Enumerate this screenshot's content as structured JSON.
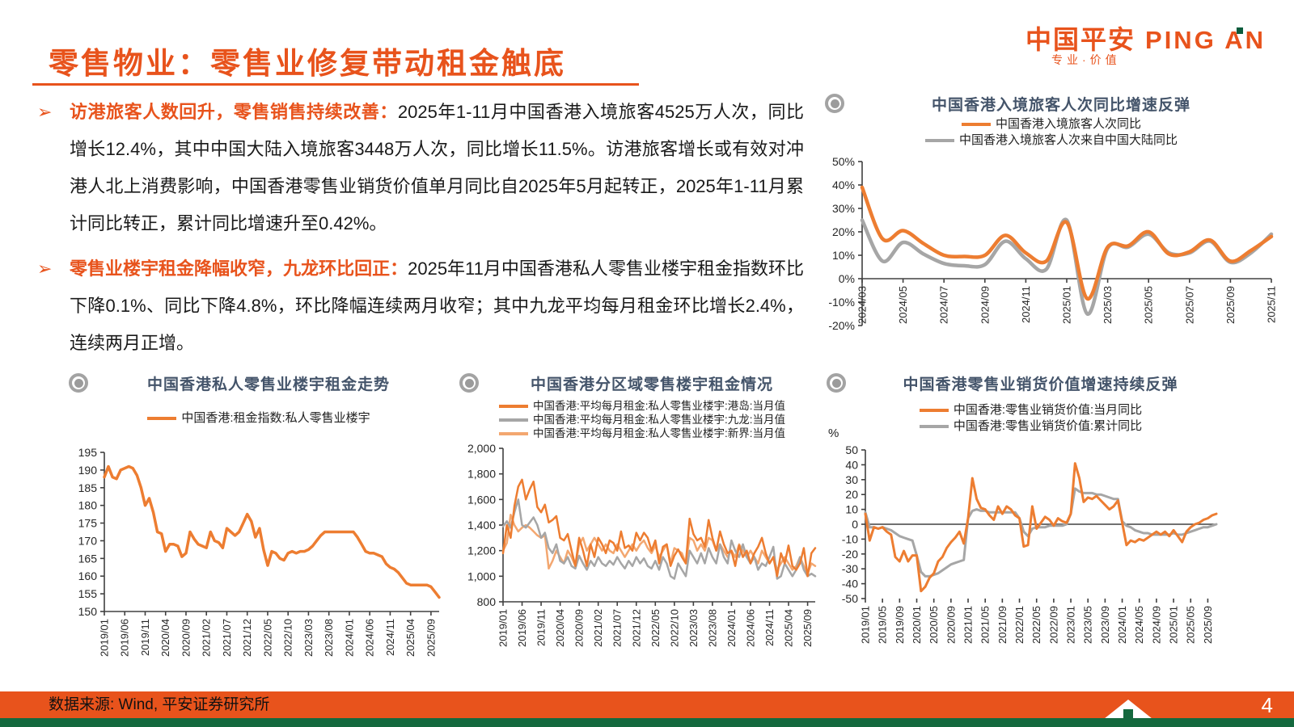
{
  "header": {
    "title": "零售物业：零售业修复带动租金触底",
    "logo": {
      "cn": "中国平安",
      "en": "PING AN",
      "tagline": "专业·价值"
    }
  },
  "bullets": [
    {
      "arrow": "➢",
      "lead": "访港旅客人数回升，零售销售持续改善：",
      "body": "2025年1-11月中国香港入境旅客4525万人次，同比增长12.4%，其中中国大陆入境旅客3448万人次，同比增长11.5%。访港旅客增长或有效对冲港人北上消费影响，中国香港零售业销货价值单月同比自2025年5月起转正，2025年1-11月累计同比转正，累计同比增速升至0.42%。"
    },
    {
      "arrow": "➢",
      "lead": "零售业楼宇租金降幅收窄，九龙环比回正：",
      "body": "2025年11月中国香港私人零售业楼宇租金指数环比下降0.1%、同比下降4.8%，环比降幅连续两月收窄；其中九龙平均每月租金环比增长2.4%，连续两月正增。"
    }
  ],
  "footer": {
    "source": "数据来源: Wind, 平安证券研究所",
    "page": "4"
  },
  "colors": {
    "accent_orange": "#E8531C",
    "series_orange": "#ED7D31",
    "series_gray": "#A6A6A6",
    "series_light_orange": "#F3A770",
    "chart_title_blue": "#44546A",
    "footer_green": "#14693E"
  },
  "chart_data": [
    {
      "type": "line",
      "title": "中国香港入境旅客人次同比增速反弹",
      "x_tick_labels": [
        "2024/03",
        "2024/05",
        "2024/07",
        "2024/09",
        "2024/11",
        "2025/01",
        "2025/03",
        "2025/05",
        "2025/07",
        "2025/09",
        "2025/11"
      ],
      "ylim": [
        -20,
        50
      ],
      "ytick_step": 10,
      "ytick_format": "percent",
      "series": [
        {
          "name": "中国香港入境旅客人次同比",
          "color": "#ED7D31",
          "values": [
            39,
            17,
            20.5,
            15,
            10,
            9.5,
            10,
            18.5,
            11,
            7.5,
            24,
            -8.5,
            13.5,
            14,
            20,
            10.5,
            11.5,
            16.5,
            7.5,
            12,
            18
          ]
        },
        {
          "name": "中国香港入境旅客人次来自中国大陆同比",
          "color": "#A6A6A6",
          "values": [
            25,
            7.5,
            15.5,
            10.5,
            6.5,
            5.5,
            6,
            16,
            8.5,
            4,
            25,
            -15,
            13,
            13.5,
            19,
            11,
            11,
            16,
            7,
            11,
            19
          ]
        }
      ]
    },
    {
      "type": "line",
      "title": "中国香港私人零售业楼宇租金走势",
      "x_tick_labels": [
        "2019/01",
        "2019/06",
        "2019/11",
        "2020/04",
        "2020/09",
        "2021/02",
        "2021/07",
        "2021/12",
        "2022/05",
        "2022/10",
        "2023/03",
        "2023/08",
        "2024/01",
        "2024/06",
        "2024/11",
        "2025/04",
        "2025/09"
      ],
      "ylim": [
        150,
        195
      ],
      "ytick_step": 5,
      "ytick_format": "plain",
      "series": [
        {
          "name": "中国香港:租金指数:私人零售业楼宇",
          "color": "#ED7D31",
          "values": [
            188,
            191,
            188,
            187.5,
            190,
            190.5,
            191,
            190.5,
            188.5,
            185,
            180,
            182,
            178,
            172.5,
            172,
            167,
            169,
            169,
            168.5,
            165.5,
            166.5,
            172.5,
            170.5,
            169,
            168.5,
            168,
            172.5,
            170,
            169.5,
            168,
            173.5,
            172.5,
            171.5,
            172.5,
            175,
            177.5,
            175.5,
            171,
            173.5,
            167.5,
            163,
            167,
            166.5,
            165,
            164.5,
            166.5,
            167,
            166.5,
            167,
            167,
            167.5,
            168.5,
            170,
            171.5,
            172.5,
            172.5,
            172.5,
            172.5,
            172.5,
            172.5,
            172.5,
            172.5,
            171,
            169,
            167,
            166.5,
            166.5,
            166,
            165.5,
            163.5,
            162.5,
            162,
            161,
            159.5,
            158,
            157.5,
            157.5,
            157.5,
            157.5,
            157.5,
            157,
            155.5,
            154
          ]
        }
      ]
    },
    {
      "type": "line",
      "title": "中国香港分区域零售楼宇租金情况",
      "x_tick_labels": [
        "2019/01",
        "2019/06",
        "2019/11",
        "2020/04",
        "2020/09",
        "2021/02",
        "2021/07",
        "2021/12",
        "2022/05",
        "2022/10",
        "2023/03",
        "2023/08",
        "2024/01",
        "2024/06",
        "2024/11",
        "2025/04",
        "2025/09"
      ],
      "ylim": [
        800,
        2000
      ],
      "ytick_step": 200,
      "ytick_format": "comma",
      "series": [
        {
          "name": "中国香港:平均每月租金:私人零售业楼宇:港岛:当月值",
          "color": "#ED7D31",
          "values": [
            1180,
            1400,
            1300,
            1550,
            1700,
            1755,
            1600,
            1680,
            1740,
            1540,
            1500,
            1560,
            1420,
            1440,
            1470,
            1300,
            1280,
            1330,
            1200,
            1080,
            1300,
            1200,
            1080,
            1250,
            1150,
            1300,
            1250,
            1180,
            1280,
            1260,
            1200,
            1350,
            1220,
            1240,
            1200,
            1340,
            1280,
            1340,
            1300,
            1200,
            1280,
            1100,
            1230,
            1250,
            1080,
            1160,
            1210,
            1150,
            1100,
            1450,
            1330,
            1280,
            1300,
            1230,
            1440,
            1300,
            1200,
            1350,
            1250,
            1180,
            1200,
            1080,
            1240,
            1150,
            1200,
            1100,
            1180,
            1230,
            1300,
            1180,
            1100,
            1150,
            1000,
            1180,
            1100,
            1240,
            1080,
            1050,
            1100,
            1220,
            1000,
            1180,
            1220
          ]
        },
        {
          "name": "中国香港:平均每月租金:私人零售业楼宇:九龙:当月值",
          "color": "#A6A6A6",
          "values": [
            1390,
            1430,
            1380,
            1500,
            1600,
            1400,
            1380,
            1420,
            1460,
            1400,
            1300,
            1340,
            1220,
            1180,
            1250,
            1120,
            1100,
            1150,
            1080,
            1060,
            1160,
            1100,
            1050,
            1120,
            1080,
            1150,
            1100,
            1080,
            1120,
            1090,
            1150,
            1100,
            1060,
            1120,
            1080,
            1150,
            1100,
            1140,
            1080,
            1060,
            1120,
            1050,
            1150,
            1100,
            1000,
            980,
            1100,
            1050,
            1000,
            1200,
            1150,
            1100,
            1180,
            1100,
            1220,
            1150,
            1100,
            1250,
            1150,
            1100,
            1280,
            1200,
            1150,
            1250,
            1150,
            1100,
            1150,
            1050,
            1100,
            1080,
            1150,
            1230,
            980,
            1000,
            1100,
            1050,
            1000,
            1050,
            1150,
            1050,
            1000,
            1020,
            1000
          ]
        },
        {
          "name": "中国香港:平均每月租金:私人零售业楼宇:新界:当月值",
          "color": "#F3A770",
          "values": [
            1200,
            1260,
            1480,
            1400,
            1350,
            1380,
            1400,
            1380,
            1350,
            1320,
            1300,
            1320,
            1060,
            1120,
            1200,
            1150,
            1100,
            1200,
            1150,
            1080,
            1250,
            1300,
            1200,
            1250,
            1300,
            1250,
            1200,
            1250,
            1200,
            1180,
            1250,
            1200,
            1150,
            1200,
            1250,
            1200,
            1250,
            1280,
            1220,
            1180,
            1240,
            1150,
            1200,
            1250,
            1100,
            1220,
            1200,
            1180,
            1100,
            1300,
            1280,
            1200,
            1250,
            1200,
            1300,
            1280,
            1200,
            1250,
            1200,
            1150,
            1200,
            1150,
            1250,
            1200,
            1150,
            1200,
            1150,
            1100,
            1200,
            1150,
            1100,
            1150,
            1050,
            1100,
            1150,
            1100,
            1050,
            1080,
            1150,
            1080,
            1020,
            1100,
            1080
          ]
        }
      ]
    },
    {
      "type": "line",
      "title": "中国香港零售业销货价值增速持续反弹",
      "y_axis_unit": "%",
      "x_tick_labels": [
        "2019/01",
        "2019/05",
        "2019/09",
        "2020/01",
        "2020/05",
        "2020/09",
        "2021/01",
        "2021/05",
        "2021/09",
        "2022/01",
        "2022/05",
        "2022/09",
        "2023/01",
        "2023/05",
        "2023/09",
        "2024/01",
        "2024/05",
        "2024/09",
        "2025/01",
        "2025/05",
        "2025/09"
      ],
      "ylim": [
        -50,
        50
      ],
      "ytick_step": 10,
      "ytick_format": "plain",
      "series": [
        {
          "name": "中国香港:零售业销货价值:当月同比",
          "color": "#ED7D31",
          "values": [
            7,
            -11,
            -2,
            -3,
            -2,
            -5,
            -7,
            -22,
            -25,
            -18,
            -25,
            -21,
            -21,
            -45,
            -42,
            -36,
            -33,
            -25,
            -22,
            -16,
            -12,
            -9,
            -5,
            -13,
            4,
            31,
            17,
            11,
            10,
            6,
            3,
            12,
            7,
            12,
            10,
            6,
            4,
            -15,
            -14,
            12,
            -3,
            1,
            5,
            3,
            -1,
            4,
            2,
            1,
            7,
            41,
            31,
            15,
            18,
            17,
            19,
            16,
            13,
            10,
            12,
            16,
            1,
            -14,
            -11,
            -12,
            -10,
            -11,
            -9,
            -7,
            -5,
            -7,
            -5,
            -8,
            -4,
            -8,
            -12,
            -5,
            -2,
            0,
            1,
            3,
            4,
            6,
            7
          ]
        },
        {
          "name": "中国香港:零售业销货价值:累计同比",
          "color": "#A6A6A6",
          "values": [
            8,
            -2,
            -2,
            -3,
            -2,
            -3,
            -4,
            -6,
            -8,
            -9,
            -10,
            -11,
            -21,
            -32,
            -35,
            -35,
            -34,
            -33,
            -31,
            -29,
            -27,
            -26,
            -25,
            -24,
            4,
            9,
            10,
            9,
            9,
            8,
            8,
            8,
            8,
            8,
            8,
            8,
            4,
            -5,
            -8,
            -3,
            -2,
            -2,
            -2,
            -1,
            -1,
            -1,
            -1,
            0,
            7,
            24,
            22,
            21,
            21,
            21,
            20,
            20,
            19,
            18,
            17,
            17,
            2,
            -1,
            -2,
            -4,
            -5,
            -6,
            -6,
            -7,
            -7,
            -7,
            -7,
            -7,
            -6,
            -7,
            -7,
            -6,
            -5,
            -4,
            -3,
            -2,
            -2,
            -1,
            0
          ]
        }
      ]
    }
  ]
}
